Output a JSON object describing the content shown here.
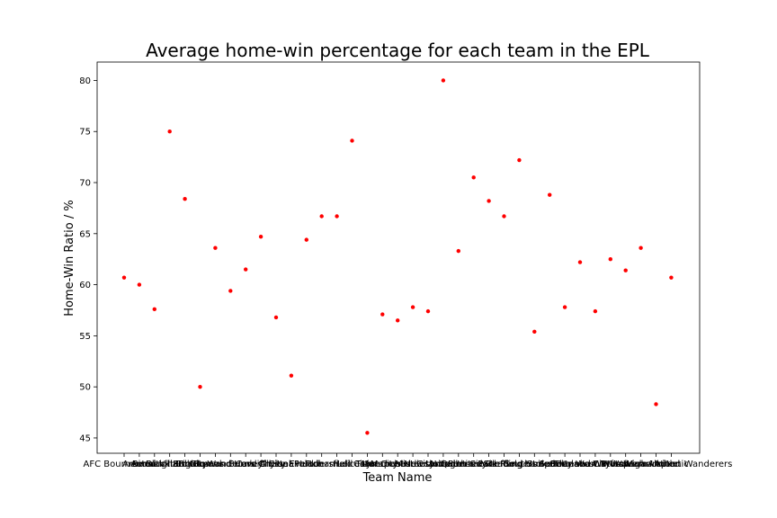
{
  "chart_data": {
    "type": "scatter",
    "title": "Average home-win percentage for each team in the EPL",
    "xlabel": "Team Name",
    "ylabel": "Home-Win Ratio / %",
    "ylim": [
      43.5,
      81.8
    ],
    "yticks": [
      45,
      50,
      55,
      60,
      65,
      70,
      75,
      80
    ],
    "grid": false,
    "marker_color": "#ff0000",
    "categories": [
      "AFC Bournemouth",
      "Arsenal",
      "Aston Villa",
      "Birmingham City",
      "Blackburn Rovers",
      "Blackpool",
      "Bolton Wanderers",
      "Brighton and Hove Albion",
      "Burnley",
      "Cardiff City",
      "Chelsea",
      "Crystal Palace",
      "Everton",
      "Fulham",
      "Huddersfield Town",
      "Hull City",
      "Leicester City",
      "Liverpool",
      "Manchester City",
      "Manchester United",
      "Middlesbrough",
      "Newcastle United",
      "Norwich City",
      "Portsmouth",
      "Queens Park Rangers",
      "Reading",
      "Sheffield United",
      "Southampton",
      "Stoke City",
      "Sunderland",
      "Swansea City",
      "Tottenham Hotspur",
      "Watford",
      "West Bromwich Albion",
      "West Ham United",
      "Wigan Athletic",
      "Wolverhampton Wanderers"
    ],
    "tick_labels": [
      "AFC Bournemouth",
      "Arsenal",
      "Aston Villa",
      "Birmingham City",
      "Blackburn Rovers",
      "Blackpool",
      "Bolton Wanderers",
      "Brighton and Hove Albion",
      "Burnley",
      "Cardiff City",
      "Chelsea",
      "Crystal Palace",
      "Everton",
      "Fulham",
      "Huddersfield Town",
      "Hull City",
      "Leicester City",
      "Liverpool",
      "Manchester City",
      "Manchester United",
      "Middlesbrough",
      "Newcastle United",
      "Norwich City",
      "Portsmouth",
      "Queens Park Rangers",
      "Reading",
      "Sheffield United",
      "Southampton",
      "Stoke City",
      "Sunderland",
      "Swansea City",
      "Tottenham Hotspur",
      "Watford",
      "West Bromwich Albion",
      "West Ham United",
      "Wigan Athletic",
      "Wolverhampton Wanderers"
    ],
    "values": [
      60.7,
      60.0,
      57.6,
      75.0,
      68.4,
      50.0,
      63.6,
      59.4,
      61.5,
      64.7,
      56.8,
      51.1,
      64.4,
      66.7,
      66.7,
      74.1,
      45.5,
      57.1,
      56.5,
      57.8,
      57.4,
      80.0,
      63.3,
      70.5,
      68.2,
      66.7,
      72.2,
      55.4,
      68.8,
      57.8,
      62.2,
      57.4,
      62.5,
      61.4,
      63.6,
      48.3,
      60.7
    ]
  }
}
